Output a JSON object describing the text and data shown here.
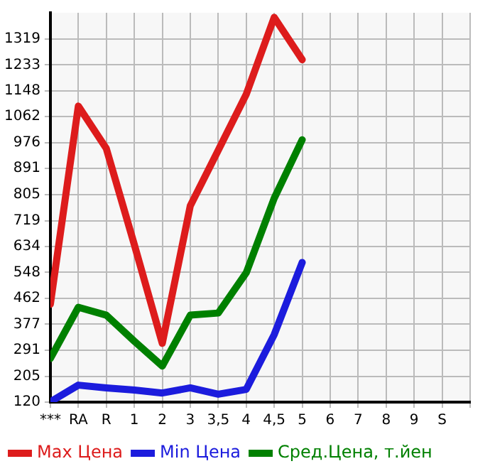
{
  "chart_data": {
    "type": "line",
    "categories": [
      "***",
      "RA",
      "R",
      "1",
      "2",
      "3",
      "3,5",
      "4",
      "4,5",
      "5",
      "6",
      "7",
      "8",
      "9",
      "S"
    ],
    "series": [
      {
        "name": "Max Цена",
        "color": "#dd1c1c",
        "values": [
          443,
          1097,
          957,
          640,
          314,
          768,
          951,
          1136,
          1390,
          1250,
          null,
          null,
          null,
          null,
          null
        ]
      },
      {
        "name": "Min Цена",
        "color": "#1c1cdd",
        "values": [
          121,
          176,
          167,
          160,
          150,
          167,
          146,
          162,
          343,
          581,
          null,
          null,
          null,
          null,
          null
        ]
      },
      {
        "name": "Сред.Цена, т.йен",
        "color": "#008000",
        "values": [
          264,
          433,
          407,
          321,
          239,
          407,
          414,
          547,
          793,
          986,
          null,
          null,
          null,
          null,
          null
        ]
      }
    ],
    "ylim": [
      120,
      1405
    ],
    "yticks": [
      120,
      205,
      291,
      377,
      462,
      548,
      634,
      719,
      805,
      891,
      976,
      1062,
      1148,
      1233,
      1319
    ],
    "grid": true,
    "legend": "bottom",
    "marker": "none",
    "line_style": "solid"
  }
}
